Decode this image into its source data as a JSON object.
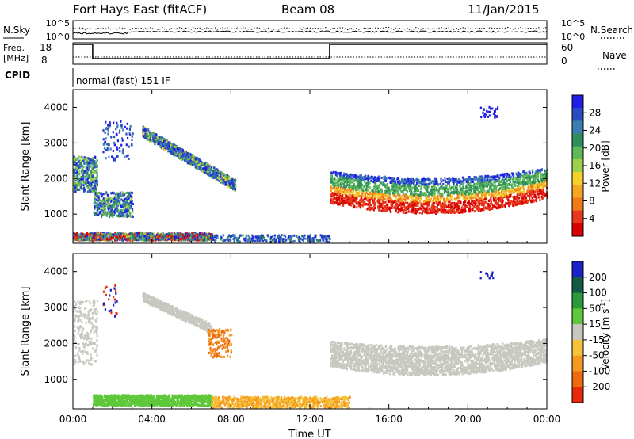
{
  "header": {
    "station": "Fort Hays East (fitACF)",
    "beam": "Beam 08",
    "date": "11/Jan/2015"
  },
  "top_panels": {
    "nsky_label": "N.Sky",
    "nsearch_label": "N.Search",
    "sky_ticks": [
      "10^5",
      "10^0"
    ],
    "search_ticks": [
      "10^5",
      "10^0"
    ],
    "freq_label": "Freq.",
    "freq_unit": "[MHz]",
    "freq_ticks": [
      "18",
      "8"
    ],
    "nave_label": "Nave",
    "nave_ticks": [
      "60",
      "0"
    ],
    "cpid_label": "CPID",
    "cpid_text": "normal (fast) 151 IF"
  },
  "chart_data": [
    {
      "type": "heatmap",
      "panel": "power",
      "ylabel": "Slant Range [km]",
      "xlabel": "",
      "yticks": [
        1000,
        2000,
        3000,
        4000
      ],
      "ylim": [
        180,
        4500
      ],
      "xticks": [
        "00:00",
        "04:00",
        "08:00",
        "12:00",
        "16:00",
        "20:00",
        "00:00"
      ],
      "xlim_hours": [
        0,
        24
      ],
      "colorbar": {
        "label": "Power [dB]",
        "ticks": [
          "4",
          "8",
          "12",
          "16",
          "20",
          "24",
          "28"
        ],
        "colors": [
          "#1f1fe6",
          "#2b4cc0",
          "#3c7eb2",
          "#2f8f5a",
          "#5fb85a",
          "#9ad04a",
          "#f5d22a",
          "#f5a623",
          "#f07a1a",
          "#e63a1a",
          "#d80000"
        ]
      }
    },
    {
      "type": "heatmap",
      "panel": "velocity",
      "ylabel": "Slant Range [km]",
      "xlabel": "Time UT",
      "yticks": [
        1000,
        2000,
        3000,
        4000
      ],
      "ylim": [
        180,
        4500
      ],
      "xticks": [
        "00:00",
        "04:00",
        "08:00",
        "12:00",
        "16:00",
        "20:00",
        "00:00"
      ],
      "xlim_hours": [
        0,
        24
      ],
      "colorbar": {
        "label": "Velocity [m s",
        "label_sup": "-1",
        "label_end": "]",
        "ticks": [
          "200",
          "100",
          "50",
          "15",
          "-15",
          "-50",
          "-100",
          "-200"
        ],
        "colors": [
          "#1a22c8",
          "#155a46",
          "#2a9a3a",
          "#5ec83a",
          "#c8c8c0",
          "#f5c23a",
          "#f59a20",
          "#ee6a10",
          "#e62a0a"
        ]
      }
    }
  ]
}
